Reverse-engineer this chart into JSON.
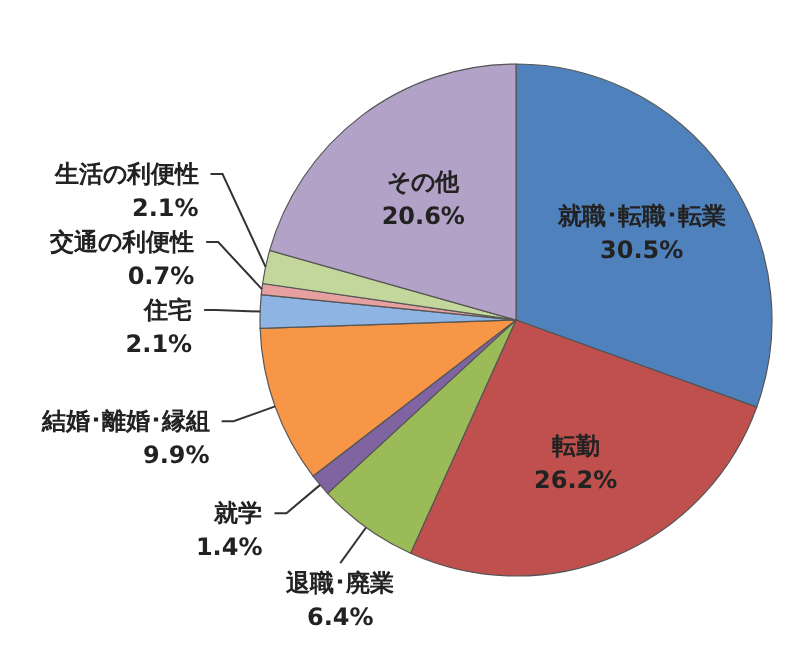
{
  "chart_data": {
    "type": "pie",
    "categories": [
      "就職･転職･転業",
      "転勤",
      "退職･廃業",
      "就学",
      "結婚･離婚･縁組",
      "住宅",
      "交通の利便性",
      "生活の利便性",
      "その他"
    ],
    "values": [
      30.5,
      26.2,
      6.4,
      1.4,
      9.9,
      2.1,
      0.7,
      2.1,
      20.6
    ],
    "colors": [
      "#4f81bd",
      "#c0504d",
      "#9bbb59",
      "#8064a2",
      "#f79646",
      "#8eb4e3",
      "#e6a0a0",
      "#c3d69b",
      "#b3a2c7"
    ],
    "value_labels": [
      "30.5%",
      "26.2%",
      "6.4%",
      "1.4%",
      "9.9%",
      "2.1%",
      "0.7%",
      "2.1%",
      "20.6%"
    ]
  }
}
